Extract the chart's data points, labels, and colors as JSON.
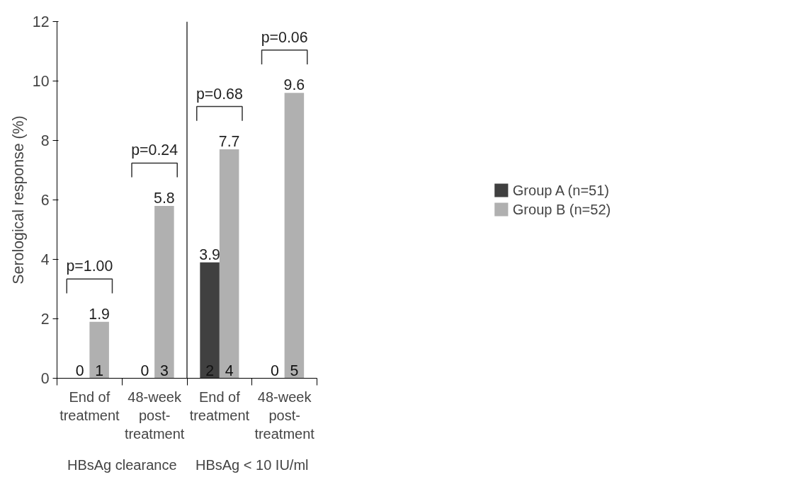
{
  "chart_data": {
    "type": "bar",
    "ylabel": "Serological response (%)",
    "categories": [
      "End of treatment",
      "48-week post-treatment",
      "End of treatment",
      "48-week post-treatment"
    ],
    "series": [
      {
        "name": "Group A (n=51)",
        "color": "#404040",
        "values": [
          0,
          0,
          3.9,
          0
        ],
        "value_labels": [
          null,
          null,
          "3.9",
          null
        ]
      },
      {
        "name": "Group B (n=52)",
        "color": "#b0b0b0",
        "values": [
          1.9,
          5.8,
          7.7,
          9.6
        ],
        "value_labels": [
          "1.9",
          "5.8",
          "7.7",
          "9.6"
        ]
      }
    ],
    "ylim": [
      0,
      12
    ],
    "yticks": [
      0,
      2,
      4,
      6,
      8,
      10,
      12
    ],
    "grid": false,
    "legend": "right",
    "annotations": [
      "p=1.00",
      "p=0.24",
      "p=0.68",
      "p=0.06",
      "0",
      "1",
      "0",
      "3",
      "2",
      "4",
      "0",
      "5",
      "HBsAg clearance",
      "HBsAg < 10 IU/ml"
    ]
  }
}
